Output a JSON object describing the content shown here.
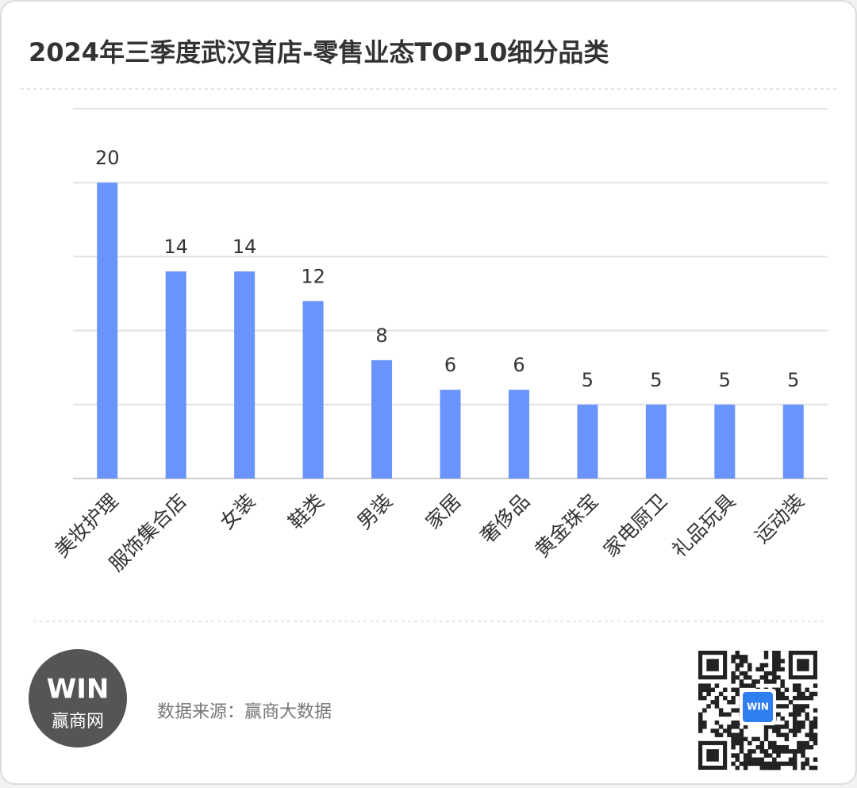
{
  "chart_data": {
    "type": "bar",
    "title": "2024年三季度武汉首店-零售业态TOP10细分品类",
    "categories": [
      "美妆护理",
      "服饰集合店",
      "女装",
      "鞋类",
      "男装",
      "家居",
      "奢侈品",
      "黄金珠宝",
      "家电厨卫",
      "礼品玩具",
      "运动装"
    ],
    "values": [
      20,
      14,
      14,
      12,
      8,
      6,
      6,
      5,
      5,
      5,
      5
    ],
    "color": "#6a94fb",
    "ylim": [
      0,
      25
    ],
    "yticks": [
      0,
      5,
      10,
      15,
      20,
      25
    ],
    "grid": true
  },
  "footer": {
    "logo_mark": "WIN",
    "logo_name": "赢商网",
    "source": "数据来源：赢商大数据",
    "qr_badge": "WIN"
  }
}
